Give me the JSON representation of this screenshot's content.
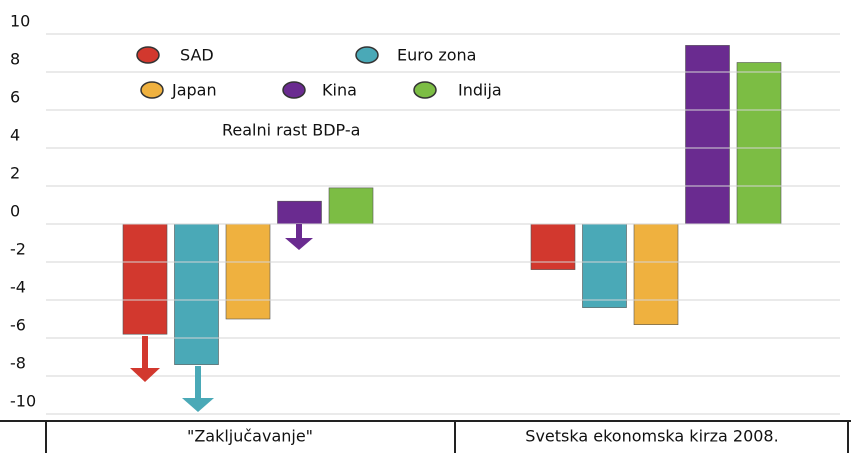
{
  "chart_data": {
    "type": "bar",
    "title": "Realni rast BDP-a",
    "categories": [
      "\"Zaključavanje\"",
      "Svetska ekonomska kirza 2008."
    ],
    "series": [
      {
        "name": "SAD",
        "color": "#d2382e",
        "values": [
          -5.8,
          -2.4
        ]
      },
      {
        "name": "Euro zona",
        "color": "#4aa9b7",
        "values": [
          -7.4,
          -4.4
        ]
      },
      {
        "name": "Japan",
        "color": "#efb13f",
        "values": [
          -5.0,
          -5.3
        ]
      },
      {
        "name": "Kina",
        "color": "#6a2b90",
        "values": [
          1.2,
          9.4
        ]
      },
      {
        "name": "Indija",
        "color": "#7cbd44",
        "values": [
          1.9,
          8.5
        ]
      }
    ],
    "ylim": [
      -10,
      10
    ],
    "yticks": [
      10,
      8,
      6,
      4,
      2,
      0,
      -2,
      -4,
      -6,
      -8,
      -10
    ],
    "grid": true
  }
}
